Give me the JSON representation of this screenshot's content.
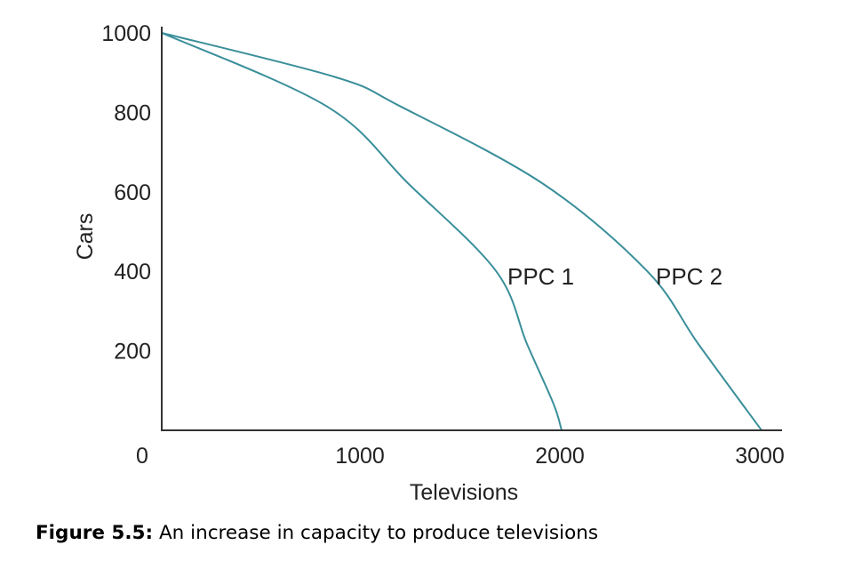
{
  "chart_data": {
    "type": "line",
    "xlabel": "Televisions",
    "ylabel": "Cars",
    "xlim": [
      0,
      3000
    ],
    "ylim": [
      0,
      1000
    ],
    "xticks": [
      "0",
      "1000",
      "2000",
      "3000"
    ],
    "yticks": [
      "200",
      "400",
      "600",
      "800",
      "1000"
    ],
    "grid": false,
    "line_color": "#3a8f9a",
    "series": [
      {
        "name": "PPC 1",
        "x": [
          0,
          826,
          1235,
          1673,
          1827,
          1959,
          2000
        ],
        "y": [
          1000,
          815,
          620,
          400,
          217,
          67,
          0
        ]
      },
      {
        "name": "PPC 2",
        "x": [
          0,
          867,
          1194,
          1908,
          2429,
          2684,
          3000
        ],
        "y": [
          1000,
          889,
          815,
          620,
          400,
          217,
          0
        ]
      }
    ]
  },
  "caption": {
    "label": "Figure 5.5:",
    "text": " An increase in capacity to produce televisions"
  }
}
